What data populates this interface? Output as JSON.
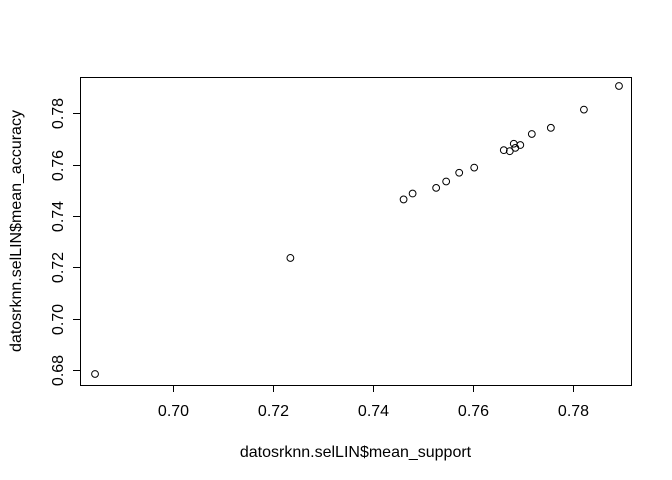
{
  "chart_data": {
    "type": "scatter",
    "title": "",
    "xlabel": "datosrknn.selLIN$mean_support",
    "ylabel": "datosrknn.selLIN$mean_accuracy",
    "xlim": [
      0.6815,
      0.7915
    ],
    "ylim": [
      0.6742,
      0.7942
    ],
    "x_ticks": [
      0.7,
      0.72,
      0.74,
      0.76,
      0.78
    ],
    "x_tick_labels": [
      "0.70",
      "0.72",
      "0.74",
      "0.76",
      "0.78"
    ],
    "y_ticks": [
      0.68,
      0.7,
      0.72,
      0.74,
      0.76,
      0.78
    ],
    "y_tick_labels": [
      "0.68",
      "0.70",
      "0.72",
      "0.74",
      "0.76",
      "0.78"
    ],
    "grid": false,
    "marker": "open-circle",
    "points": [
      {
        "x": 0.6845,
        "y": 0.6785
      },
      {
        "x": 0.7235,
        "y": 0.7237
      },
      {
        "x": 0.7461,
        "y": 0.7465
      },
      {
        "x": 0.7479,
        "y": 0.7488
      },
      {
        "x": 0.7526,
        "y": 0.751
      },
      {
        "x": 0.7546,
        "y": 0.7535
      },
      {
        "x": 0.7572,
        "y": 0.7569
      },
      {
        "x": 0.7602,
        "y": 0.7589
      },
      {
        "x": 0.7661,
        "y": 0.7657
      },
      {
        "x": 0.7673,
        "y": 0.7653
      },
      {
        "x": 0.7681,
        "y": 0.7682
      },
      {
        "x": 0.7684,
        "y": 0.7666
      },
      {
        "x": 0.7694,
        "y": 0.7677
      },
      {
        "x": 0.7717,
        "y": 0.772
      },
      {
        "x": 0.7755,
        "y": 0.7744
      },
      {
        "x": 0.7821,
        "y": 0.7815
      },
      {
        "x": 0.7891,
        "y": 0.7907
      }
    ]
  }
}
